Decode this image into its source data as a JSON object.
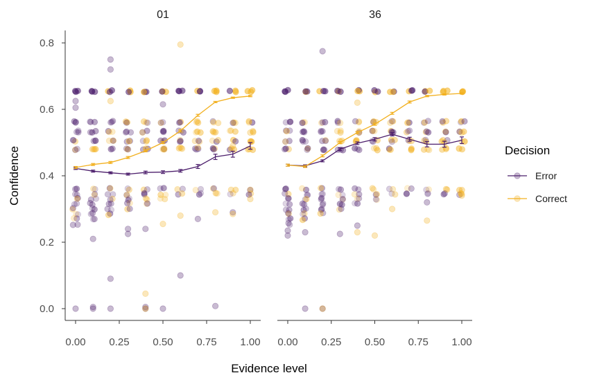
{
  "chart_data": {
    "type": "scatter",
    "facets": [
      "01",
      "36"
    ],
    "xlabel": "Evidence level",
    "ylabel": "Confidence",
    "x_ticks": [
      "0.00",
      "0.25",
      "0.50",
      "0.75",
      "1.00"
    ],
    "y_ticks": [
      "0.0",
      "0.2",
      "0.4",
      "0.6",
      "0.8"
    ],
    "xlim": [
      -0.05,
      1.05
    ],
    "ylim": [
      -0.04,
      0.84
    ],
    "grid": false,
    "legend": {
      "title": "Decision",
      "position": "right",
      "entries": [
        {
          "name": "Error",
          "color": "#4b1d6b"
        },
        {
          "name": "Correct",
          "color": "#f2b01e"
        }
      ]
    },
    "x_levels": [
      0.0,
      0.1,
      0.2,
      0.3,
      0.4,
      0.5,
      0.6,
      0.7,
      0.8,
      0.9,
      1.0
    ],
    "panels": [
      {
        "facet": "01",
        "series": [
          {
            "name": "Error",
            "mean_y": [
              0.422,
              0.414,
              0.409,
              0.405,
              0.41,
              0.411,
              0.415,
              0.428,
              0.457,
              0.465,
              0.49
            ],
            "err": [
              0.003,
              0.003,
              0.003,
              0.003,
              0.004,
              0.004,
              0.004,
              0.006,
              0.008,
              0.009,
              0.01
            ]
          },
          {
            "name": "Correct",
            "mean_y": [
              0.425,
              0.434,
              0.44,
              0.455,
              0.475,
              0.5,
              0.535,
              0.582,
              0.622,
              0.635,
              0.64
            ],
            "err": [
              0.003,
              0.003,
              0.003,
              0.003,
              0.003,
              0.003,
              0.003,
              0.003,
              0.002,
              0.002,
              0.002
            ]
          }
        ],
        "points": {
          "Error": [
            [
              0.0,
              0.625
            ],
            [
              0.0,
              0.605
            ],
            [
              0.0,
              0.0
            ],
            [
              0.1,
              0.0
            ],
            [
              0.1,
              0.005
            ],
            [
              0.1,
              0.21
            ],
            [
              0.2,
              0.75
            ],
            [
              0.2,
              0.72
            ],
            [
              0.2,
              0.09
            ],
            [
              0.2,
              0.0
            ],
            [
              0.3,
              0.225
            ],
            [
              0.3,
              0.24
            ],
            [
              0.4,
              0.0
            ],
            [
              0.4,
              0.005
            ],
            [
              0.4,
              0.24
            ],
            [
              0.5,
              0.615
            ],
            [
              0.5,
              0.0
            ],
            [
              0.6,
              0.1
            ],
            [
              0.7,
              0.27
            ],
            [
              0.8,
              0.008
            ],
            [
              0.9,
              0.29
            ]
          ],
          "Correct": [
            [
              0.2,
              0.625
            ],
            [
              0.4,
              0.045
            ],
            [
              0.4,
              0.0
            ],
            [
              0.6,
              0.795
            ],
            [
              0.6,
              0.485
            ],
            [
              0.7,
              0.485
            ],
            [
              0.5,
              0.48
            ],
            [
              0.8,
              0.29
            ],
            [
              0.9,
              0.285
            ],
            [
              1.0,
              0.33
            ],
            [
              1.0,
              0.53
            ],
            [
              0.9,
              0.49
            ],
            [
              0.5,
              0.255
            ],
            [
              0.6,
              0.28
            ]
          ]
        }
      },
      {
        "facet": "36",
        "series": [
          {
            "name": "Error",
            "mean_y": [
              0.432,
              0.43,
              0.445,
              0.48,
              0.498,
              0.51,
              0.525,
              0.51,
              0.495,
              0.495,
              0.507
            ],
            "err": [
              0.003,
              0.003,
              0.003,
              0.004,
              0.004,
              0.005,
              0.005,
              0.006,
              0.008,
              0.009,
              0.01
            ]
          },
          {
            "name": "Correct",
            "mean_y": [
              0.432,
              0.428,
              0.46,
              0.5,
              0.53,
              0.555,
              0.588,
              0.622,
              0.64,
              0.645,
              0.648
            ],
            "err": [
              0.003,
              0.003,
              0.003,
              0.003,
              0.003,
              0.003,
              0.003,
              0.003,
              0.002,
              0.002,
              0.002
            ]
          }
        ],
        "points": {
          "Error": [
            [
              0.0,
              0.22
            ],
            [
              0.0,
              0.235
            ],
            [
              0.1,
              0.0
            ],
            [
              0.1,
              0.23
            ],
            [
              0.2,
              0.775
            ],
            [
              0.2,
              0.0
            ],
            [
              0.3,
              0.225
            ],
            [
              0.4,
              0.25
            ],
            [
              0.6,
              0.53
            ],
            [
              0.8,
              0.32
            ]
          ],
          "Correct": [
            [
              0.2,
              0.0
            ],
            [
              0.4,
              0.62
            ],
            [
              0.4,
              0.23
            ],
            [
              0.5,
              0.22
            ],
            [
              0.8,
              0.265
            ],
            [
              1.0,
              0.34
            ],
            [
              1.0,
              0.345
            ],
            [
              0.6,
              0.3
            ],
            [
              0.9,
              0.5
            ],
            [
              1.0,
              0.53
            ]
          ]
        }
      }
    ]
  }
}
